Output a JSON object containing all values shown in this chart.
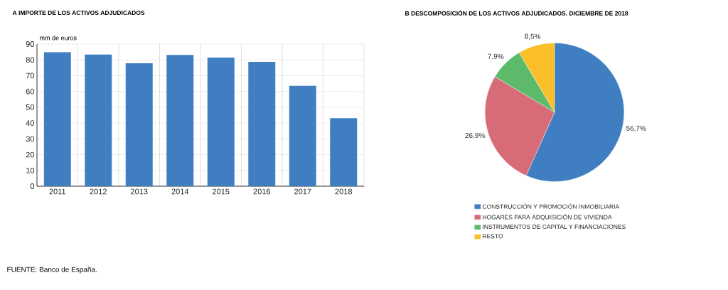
{
  "chart_data": [
    {
      "type": "bar",
      "title": "A  IMPORTE DE LOS ACTIVOS ADJUDICADOS",
      "ylabel": "mm de euros",
      "categories": [
        "2011",
        "2012",
        "2013",
        "2014",
        "2015",
        "2016",
        "2017",
        "2018"
      ],
      "values": [
        84.9,
        83.4,
        77.8,
        83.1,
        81.4,
        78.8,
        63.6,
        43.1
      ],
      "color": "#3f7fc1",
      "ylim": [
        0,
        90
      ],
      "yticks": [
        0,
        10,
        20,
        30,
        40,
        50,
        60,
        70,
        80,
        90
      ],
      "grid": true,
      "annotations": [
        "FUENTE: Banco de España."
      ]
    },
    {
      "type": "pie",
      "title": "B  DESCOMPOSICIÓN DE LOS ACTIVOS ADJUDICADOS. DICIEMBRE DE 2018",
      "categories": [
        "CONSTRUCCIÓN Y PROMOCIÓN INMOBILIARIA",
        "HOGARES PARA ADQUISICIÓN DE VIVIENDA",
        "INSTRUMENTOS DE CAPITAL Y FINANCIACIONES",
        "RESTO"
      ],
      "values": [
        56.7,
        26.9,
        7.9,
        8.5
      ],
      "colors": [
        "#3f7fc1",
        "#d76b78",
        "#5cba6a",
        "#fbbf2a"
      ],
      "value_labels": [
        "56,7%",
        "26,9%",
        "7,9%",
        "8,5%"
      ],
      "legend": "bottom"
    }
  ]
}
